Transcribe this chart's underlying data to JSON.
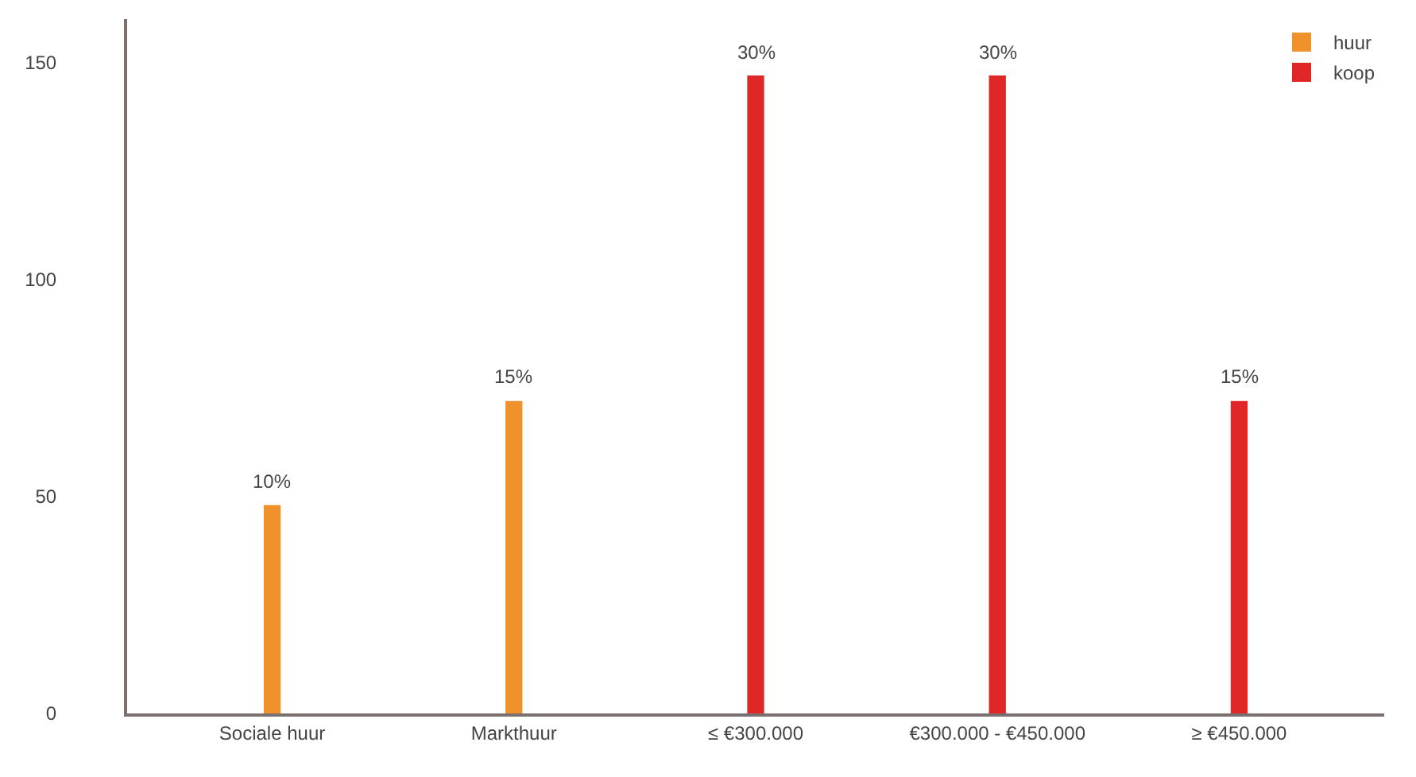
{
  "chart_data": {
    "type": "bar",
    "categories": [
      "Sociale huur",
      "Markthuur",
      "≤ €300.000",
      "€300.000 - €450.000",
      "≥ €450.000"
    ],
    "series": [
      {
        "name": "huur",
        "color": "#f0922b",
        "values": [
          48,
          72,
          null,
          null,
          null
        ]
      },
      {
        "name": "koop",
        "color": "#e02626",
        "values": [
          null,
          null,
          147,
          147,
          72
        ]
      }
    ],
    "annotations": [
      {
        "text": "10%",
        "x": "Sociale huur",
        "y": 48
      },
      {
        "text": "15%",
        "x": "Markthuur",
        "y": 72
      },
      {
        "text": "30%",
        "x": "≤ €300.000",
        "y": 147
      },
      {
        "text": "30%",
        "x": "€300.000 - €450.000",
        "y": 147
      },
      {
        "text": "15%",
        "x": "≥ €450.000",
        "y": 72
      }
    ],
    "ylim": [
      0,
      160
    ],
    "yticks": [
      0,
      50,
      100,
      150
    ],
    "grid": false,
    "legend": "top right"
  }
}
